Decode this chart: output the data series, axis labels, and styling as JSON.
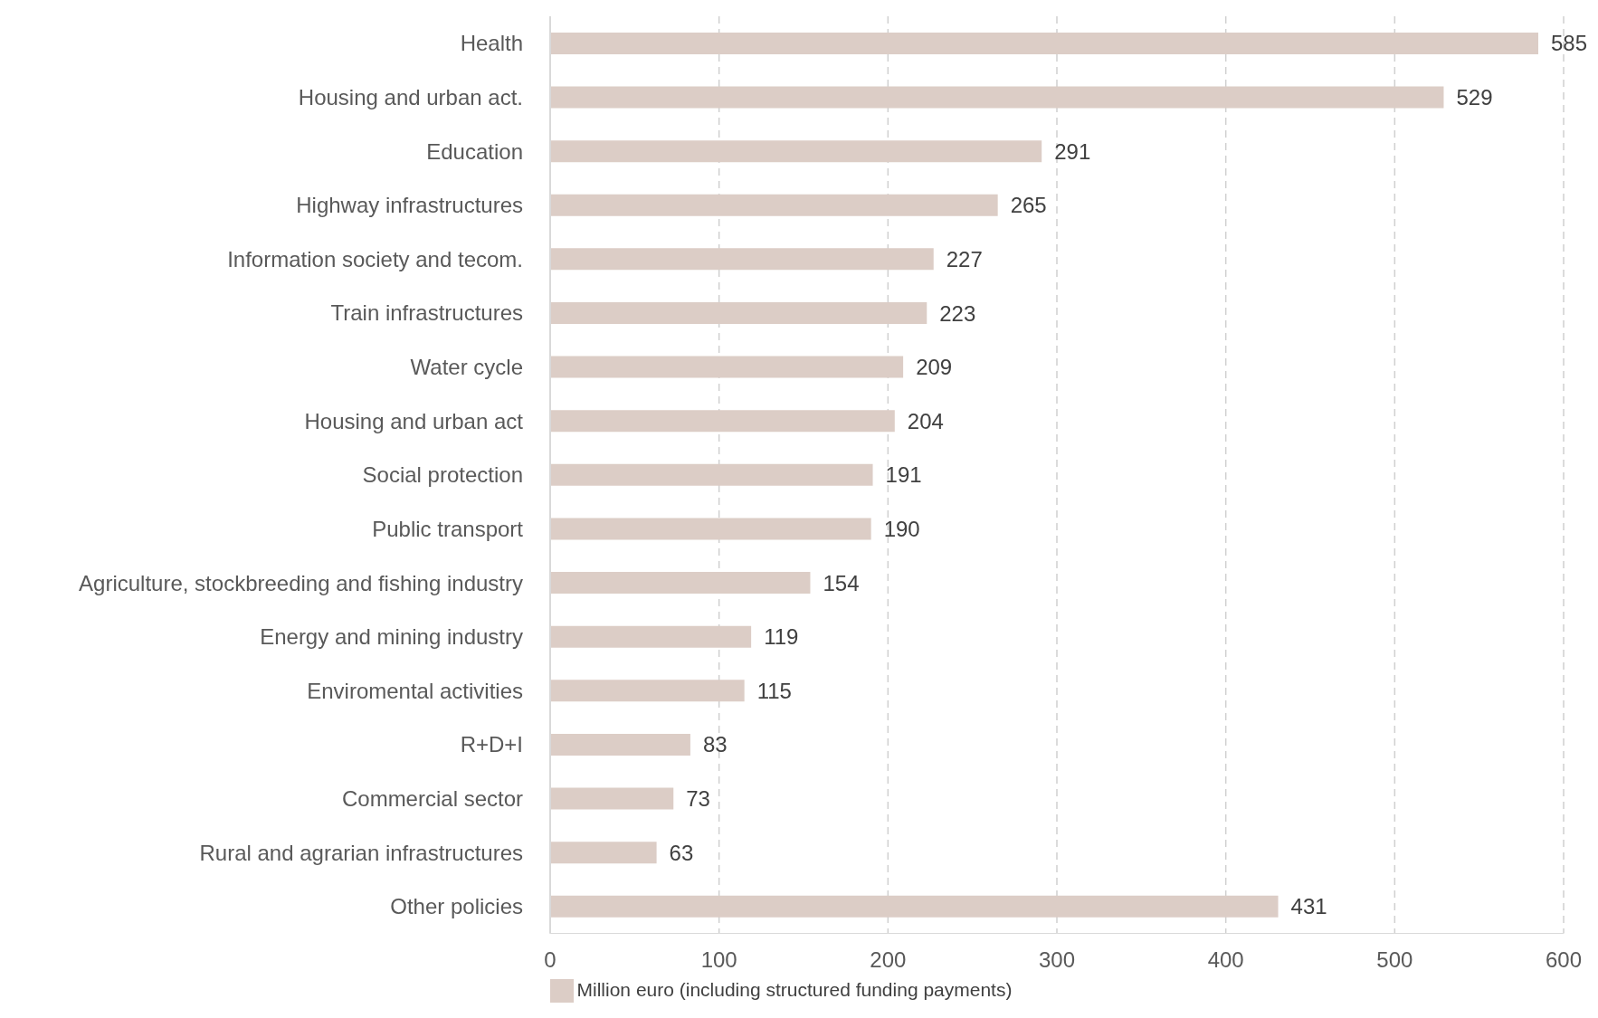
{
  "chart_data": {
    "type": "bar",
    "orientation": "horizontal",
    "categories": [
      "Health",
      "Housing and urban act.",
      "Education",
      "Highway infrastructures",
      "Information society and tecom.",
      "Train infrastructures",
      "Water cycle",
      "Housing and urban act",
      "Social protection",
      "Public transport",
      "Agriculture, stockbreeding and fishing industry",
      "Energy and mining industry",
      "Enviromental activities",
      "R+D+I",
      "Commercial sector",
      "Rural and agrarian infrastructures",
      "Other policies"
    ],
    "series": [
      {
        "name": "Million euro (including structured funding payments)",
        "color": "#dccdc6",
        "values": [
          585,
          529,
          291,
          265,
          227,
          223,
          209,
          204,
          191,
          190,
          154,
          119,
          115,
          83,
          73,
          63,
          431
        ]
      }
    ],
    "xlim": [
      0,
      600
    ],
    "xticks": [
      0,
      100,
      200,
      300,
      400,
      500,
      600
    ],
    "grid": "x",
    "legend": "bottom",
    "data_labels": true
  }
}
